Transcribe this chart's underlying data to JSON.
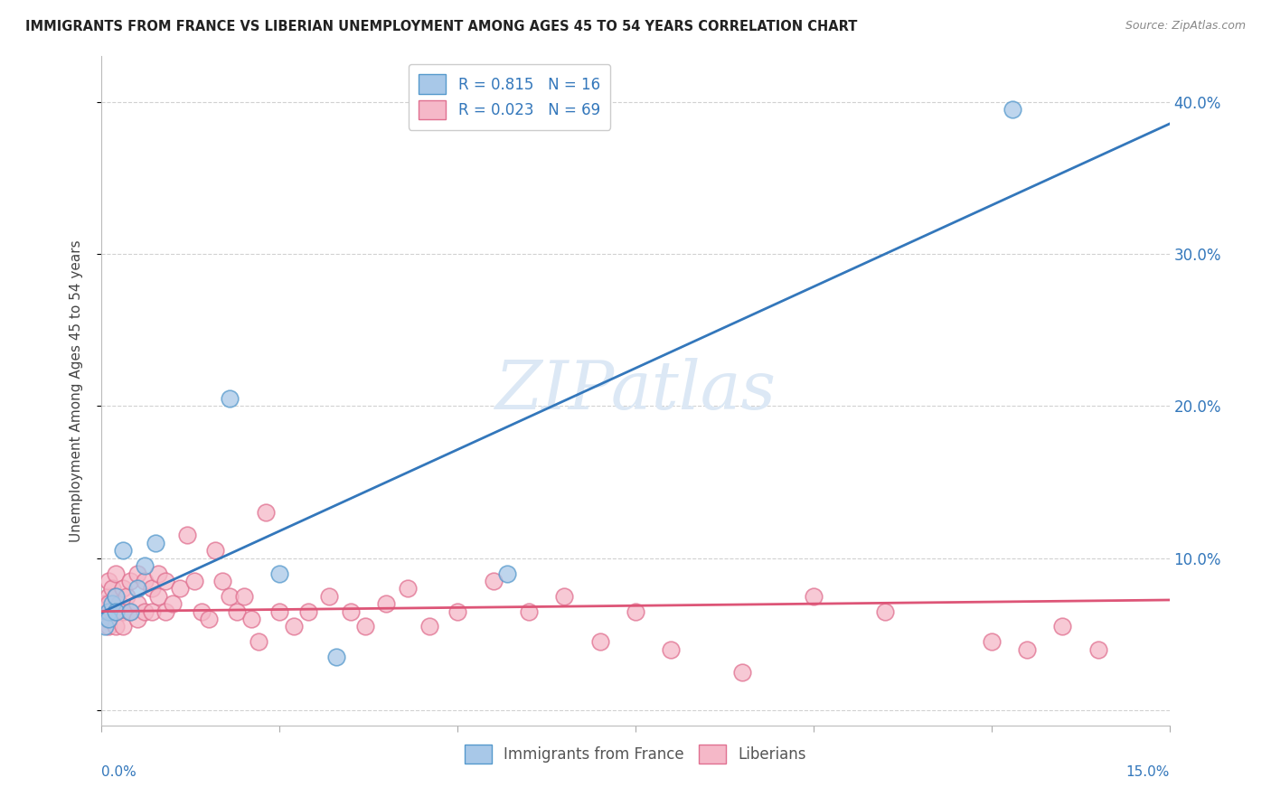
{
  "title": "IMMIGRANTS FROM FRANCE VS LIBERIAN UNEMPLOYMENT AMONG AGES 45 TO 54 YEARS CORRELATION CHART",
  "source": "Source: ZipAtlas.com",
  "ylabel": "Unemployment Among Ages 45 to 54 years",
  "legend1_r": "0.815",
  "legend1_n": "16",
  "legend2_r": "0.023",
  "legend2_n": "69",
  "xlim": [
    0.0,
    0.15
  ],
  "ylim": [
    -0.01,
    0.43
  ],
  "yticks": [
    0.0,
    0.1,
    0.2,
    0.3,
    0.4
  ],
  "ytick_labels": [
    "",
    "10.0%",
    "20.0%",
    "30.0%",
    "40.0%"
  ],
  "blue_scatter_color": "#a8c8e8",
  "blue_edge_color": "#5599cc",
  "pink_scatter_color": "#f5b8c8",
  "pink_edge_color": "#e07090",
  "blue_line_color": "#3377bb",
  "pink_line_color": "#dd5577",
  "watermark_color": "#dce8f5",
  "france_x": [
    0.0005,
    0.001,
    0.001,
    0.0015,
    0.002,
    0.002,
    0.003,
    0.004,
    0.005,
    0.006,
    0.0075,
    0.018,
    0.025,
    0.033,
    0.057,
    0.128
  ],
  "france_y": [
    0.055,
    0.065,
    0.06,
    0.07,
    0.075,
    0.065,
    0.105,
    0.065,
    0.08,
    0.095,
    0.11,
    0.205,
    0.09,
    0.035,
    0.09,
    0.395
  ],
  "liberia_x": [
    0.0003,
    0.0005,
    0.0007,
    0.001,
    0.001,
    0.001,
    0.001,
    0.001,
    0.0015,
    0.0015,
    0.002,
    0.002,
    0.002,
    0.002,
    0.0025,
    0.003,
    0.003,
    0.003,
    0.0035,
    0.004,
    0.004,
    0.005,
    0.005,
    0.005,
    0.006,
    0.006,
    0.007,
    0.007,
    0.008,
    0.008,
    0.009,
    0.009,
    0.01,
    0.011,
    0.012,
    0.013,
    0.014,
    0.015,
    0.016,
    0.017,
    0.018,
    0.019,
    0.02,
    0.021,
    0.022,
    0.023,
    0.025,
    0.027,
    0.029,
    0.032,
    0.035,
    0.037,
    0.04,
    0.043,
    0.046,
    0.05,
    0.055,
    0.06,
    0.065,
    0.07,
    0.075,
    0.08,
    0.09,
    0.1,
    0.11,
    0.125,
    0.13,
    0.135,
    0.14
  ],
  "liberia_y": [
    0.065,
    0.07,
    0.06,
    0.075,
    0.085,
    0.055,
    0.065,
    0.07,
    0.08,
    0.065,
    0.09,
    0.075,
    0.055,
    0.065,
    0.07,
    0.08,
    0.065,
    0.055,
    0.075,
    0.085,
    0.065,
    0.09,
    0.07,
    0.06,
    0.085,
    0.065,
    0.08,
    0.065,
    0.09,
    0.075,
    0.085,
    0.065,
    0.07,
    0.08,
    0.115,
    0.085,
    0.065,
    0.06,
    0.105,
    0.085,
    0.075,
    0.065,
    0.075,
    0.06,
    0.045,
    0.13,
    0.065,
    0.055,
    0.065,
    0.075,
    0.065,
    0.055,
    0.07,
    0.08,
    0.055,
    0.065,
    0.085,
    0.065,
    0.075,
    0.045,
    0.065,
    0.04,
    0.025,
    0.075,
    0.065,
    0.045,
    0.04,
    0.055,
    0.04
  ]
}
